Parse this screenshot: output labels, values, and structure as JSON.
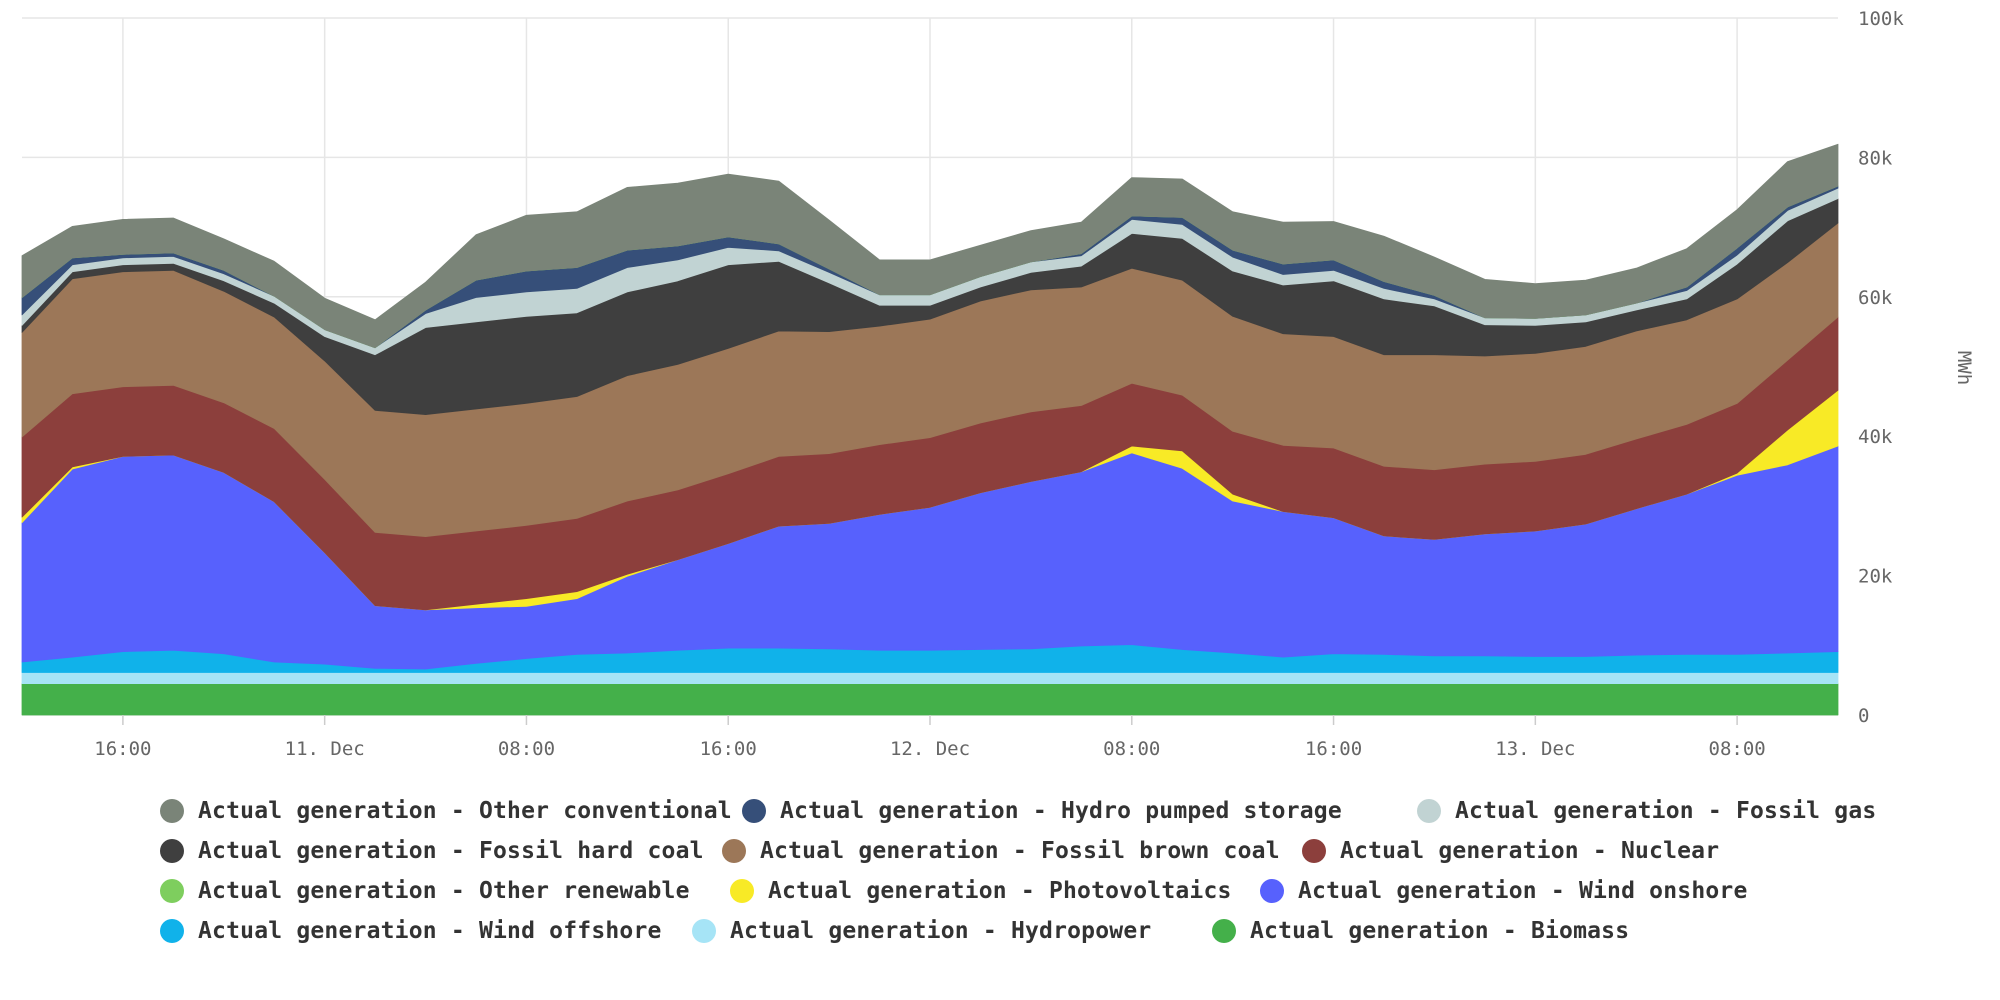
{
  "chart_data": {
    "type": "area",
    "stacked": true,
    "title": "",
    "xlabel": "",
    "ylabel": "MWh",
    "ylim": [
      0,
      100000
    ],
    "grid": true,
    "legend_position": "bottom",
    "x": [
      "10 Dec 12:00",
      "10 Dec 14:00",
      "10 Dec 16:00",
      "10 Dec 18:00",
      "10 Dec 20:00",
      "10 Dec 22:00",
      "11 Dec 00:00",
      "11 Dec 02:00",
      "11 Dec 04:00",
      "11 Dec 06:00",
      "11 Dec 08:00",
      "11 Dec 10:00",
      "11 Dec 12:00",
      "11 Dec 14:00",
      "11 Dec 16:00",
      "11 Dec 18:00",
      "11 Dec 20:00",
      "11 Dec 22:00",
      "12 Dec 00:00",
      "12 Dec 02:00",
      "12 Dec 04:00",
      "12 Dec 06:00",
      "12 Dec 08:00",
      "12 Dec 10:00",
      "12 Dec 12:00",
      "12 Dec 14:00",
      "12 Dec 16:00",
      "12 Dec 18:00",
      "12 Dec 20:00",
      "12 Dec 22:00",
      "13 Dec 00:00",
      "13 Dec 02:00",
      "13 Dec 04:00",
      "13 Dec 06:00",
      "13 Dec 08:00",
      "13 Dec 10:00",
      "13 Dec 12:00"
    ],
    "x_ticks": [
      "16:00",
      "11. Dec",
      "08:00",
      "16:00",
      "12. Dec",
      "08:00",
      "16:00",
      "13. Dec",
      "08:00"
    ],
    "y_ticks": [
      "0",
      "20k",
      "40k",
      "60k",
      "80k",
      "100k"
    ],
    "series": [
      {
        "name": "Actual generation - Biomass",
        "color": "#44b04a",
        "values": [
          4500,
          4500,
          4500,
          4500,
          4500,
          4500,
          4500,
          4500,
          4500,
          4500,
          4500,
          4500,
          4500,
          4500,
          4500,
          4500,
          4500,
          4500,
          4500,
          4500,
          4500,
          4500,
          4500,
          4500,
          4500,
          4500,
          4500,
          4500,
          4500,
          4500,
          4500,
          4500,
          4500,
          4500,
          4500,
          4500,
          4500
        ]
      },
      {
        "name": "Actual generation - Hydropower",
        "color": "#a6e4f6",
        "values": [
          1600,
          1600,
          1600,
          1600,
          1600,
          1600,
          1600,
          1600,
          1600,
          1600,
          1600,
          1600,
          1600,
          1600,
          1600,
          1600,
          1600,
          1600,
          1600,
          1600,
          1600,
          1600,
          1600,
          1600,
          1600,
          1600,
          1600,
          1600,
          1600,
          1600,
          1600,
          1600,
          1600,
          1600,
          1600,
          1600,
          1600
        ]
      },
      {
        "name": "Actual generation - Wind offshore",
        "color": "#10b2ea",
        "values": [
          1500,
          2200,
          3000,
          3200,
          2700,
          1500,
          1200,
          600,
          500,
          1300,
          2000,
          2600,
          2800,
          3200,
          3500,
          3500,
          3400,
          3200,
          3200,
          3300,
          3400,
          3800,
          4000,
          3300,
          2800,
          2200,
          2700,
          2600,
          2400,
          2400,
          2300,
          2300,
          2500,
          2600,
          2600,
          2800,
          3000
        ]
      },
      {
        "name": "Actual generation - Wind onshore",
        "color": "#5761fd",
        "values": [
          20000,
          27000,
          28000,
          28000,
          26000,
          23000,
          16000,
          9000,
          8500,
          8000,
          7500,
          8000,
          11000,
          13000,
          15000,
          17500,
          18000,
          19500,
          20500,
          22500,
          24000,
          25000,
          27500,
          26000,
          21800,
          20900,
          19500,
          17000,
          16700,
          17500,
          18000,
          19000,
          21000,
          23000,
          25700,
          27000,
          29500
        ]
      },
      {
        "name": "Actual generation - Photovoltaics",
        "color": "#f8ea26",
        "values": [
          800,
          300,
          0,
          0,
          0,
          0,
          0,
          0,
          0,
          500,
          1100,
          1000,
          300,
          0,
          0,
          0,
          0,
          0,
          0,
          0,
          0,
          0,
          1000,
          2500,
          1000,
          0,
          0,
          0,
          0,
          0,
          0,
          0,
          0,
          0,
          300,
          5000,
          8000
        ]
      },
      {
        "name": "Actual generation - Nuclear",
        "color": "#8c3f3c",
        "values": [
          11500,
          10500,
          10000,
          10000,
          10000,
          10500,
          10500,
          10500,
          10500,
          10500,
          10500,
          10500,
          10500,
          10000,
          10000,
          10000,
          10000,
          10000,
          10000,
          10000,
          10000,
          9500,
          9000,
          8000,
          9000,
          9500,
          10000,
          10000,
          10000,
          10000,
          10000,
          10000,
          10000,
          10000,
          10000,
          10000,
          10500
        ]
      },
      {
        "name": "Actual generation - Fossil brown coal",
        "color": "#9c7758",
        "values": [
          15000,
          16500,
          16500,
          16500,
          16000,
          16000,
          17000,
          17500,
          17500,
          17500,
          17500,
          17500,
          18000,
          18000,
          18000,
          18000,
          17500,
          17000,
          17000,
          17500,
          17500,
          17000,
          16500,
          16500,
          16500,
          16000,
          16000,
          16000,
          16500,
          15500,
          15500,
          15500,
          15500,
          15000,
          15000,
          14000,
          13500
        ]
      },
      {
        "name": "Actual generation - Fossil hard coal",
        "color": "#3f3f3f",
        "values": [
          1000,
          1000,
          1000,
          1000,
          1500,
          2000,
          3500,
          8000,
          12500,
          12500,
          12500,
          12000,
          12000,
          12000,
          12000,
          10000,
          7000,
          3000,
          2000,
          2000,
          2500,
          3000,
          5000,
          6000,
          6500,
          7000,
          8000,
          8000,
          7000,
          4500,
          4000,
          3500,
          3000,
          3000,
          5000,
          6000,
          3500
        ]
      },
      {
        "name": "Actual generation - Fossil gas",
        "color": "#c1d3d3",
        "values": [
          1500,
          1000,
          1000,
          1000,
          1000,
          1000,
          1000,
          1000,
          2000,
          3500,
          3500,
          3500,
          3500,
          3000,
          2500,
          1500,
          1500,
          1500,
          1500,
          1500,
          1500,
          1500,
          2000,
          2000,
          2000,
          1500,
          1500,
          1500,
          1000,
          1000,
          1000,
          1000,
          1000,
          1200,
          1300,
          1500,
          1500
        ]
      },
      {
        "name": "Actual generation - Hydro pumped storage",
        "color": "#364f79",
        "values": [
          2500,
          1000,
          500,
          500,
          500,
          0,
          0,
          0,
          500,
          2500,
          3000,
          3000,
          2500,
          2000,
          1500,
          1000,
          500,
          0,
          0,
          0,
          0,
          300,
          500,
          1000,
          1000,
          1500,
          1500,
          1000,
          500,
          0,
          0,
          0,
          0,
          500,
          1000,
          500,
          300
        ]
      },
      {
        "name": "Actual generation - Other renewable",
        "color": "#7ece5e",
        "values": [
          0,
          0,
          0,
          0,
          0,
          0,
          0,
          0,
          0,
          0,
          0,
          0,
          0,
          0,
          0,
          0,
          0,
          0,
          0,
          0,
          0,
          0,
          0,
          0,
          0,
          0,
          0,
          0,
          0,
          0,
          0,
          0,
          0,
          0,
          0,
          0,
          0
        ]
      },
      {
        "name": "Actual generation - Other conventional",
        "color": "#7a8478",
        "values": [
          6000,
          4500,
          5000,
          5000,
          4500,
          5000,
          4500,
          4000,
          4000,
          6500,
          8000,
          8000,
          9000,
          9000,
          9000,
          9000,
          7000,
          5000,
          5000,
          4500,
          4500,
          4500,
          5500,
          5500,
          5500,
          6000,
          5500,
          6500,
          5500,
          5500,
          5000,
          5000,
          5000,
          5500,
          5500,
          6500,
          6000
        ]
      }
    ],
    "legend": [
      [
        "Actual generation - Other conventional",
        "Actual generation - Hydro pumped storage",
        "Actual generation - Fossil gas"
      ],
      [
        "Actual generation - Fossil hard coal",
        "Actual generation - Fossil brown coal",
        "Actual generation - Nuclear"
      ],
      [
        "Actual generation - Other renewable",
        "Actual generation - Photovoltaics",
        "Actual generation - Wind onshore"
      ],
      [
        "Actual generation - Wind offshore",
        "Actual generation - Hydropower",
        "Actual generation - Biomass"
      ]
    ]
  }
}
